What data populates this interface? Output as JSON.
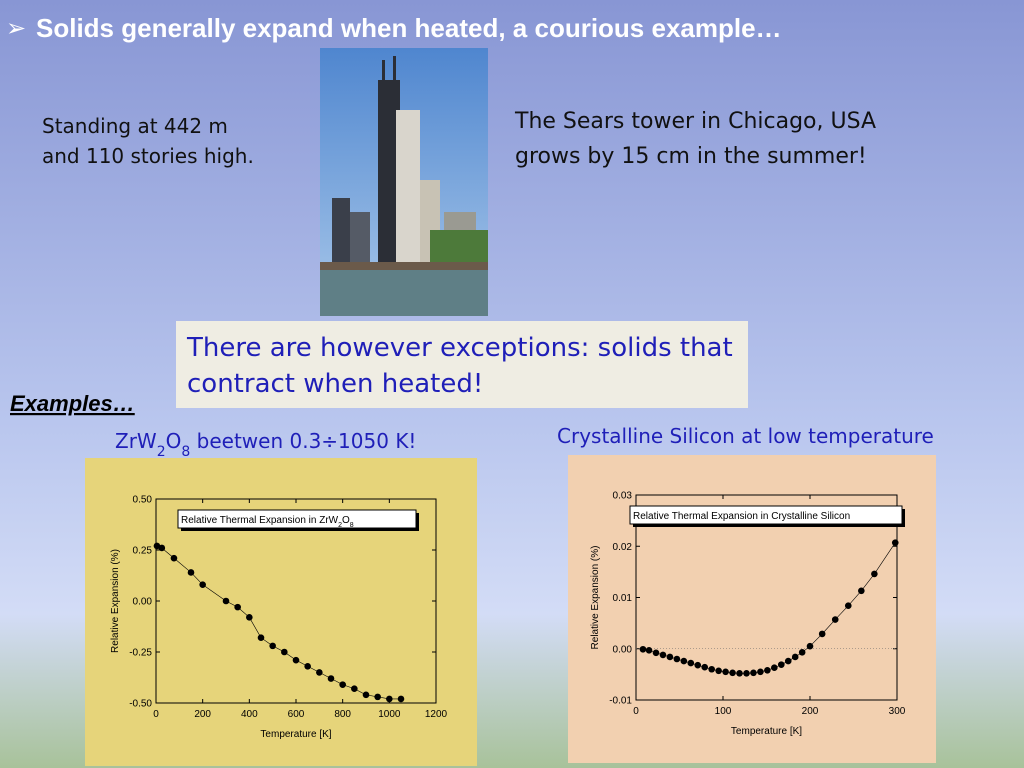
{
  "slide": {
    "title": "Solids generally expand when heated, a courious example…",
    "left_text": [
      "Standing at 442 m",
      "and 110 stories high."
    ],
    "right_text": [
      "The Sears tower in Chicago, USA",
      "grows by 15 cm in the summer!"
    ],
    "box_text": [
      "There are however exceptions: solids that",
      "contract when heated!"
    ],
    "examples": "Examples…"
  },
  "chart_data": [
    {
      "type": "scatter",
      "caption": [
        "ZrW",
        "2",
        "O",
        "8",
        " beetwen 0.3÷1050 K!"
      ],
      "title": [
        "Relative Thermal Expansion in ZrW",
        "2",
        "O",
        "8"
      ],
      "xlabel": "Temperature [K]",
      "ylabel": "Relative Expansion (%)",
      "x": [
        4,
        25,
        77,
        150,
        200,
        300,
        350,
        400,
        450,
        500,
        550,
        600,
        650,
        700,
        750,
        800,
        850,
        900,
        950,
        1000,
        1050
      ],
      "values": [
        0.27,
        0.26,
        0.21,
        0.14,
        0.08,
        0.0,
        -0.03,
        -0.08,
        -0.18,
        -0.22,
        -0.25,
        -0.29,
        -0.32,
        -0.35,
        -0.38,
        -0.41,
        -0.43,
        -0.46,
        -0.47,
        -0.48,
        -0.48
      ],
      "color": "#000000",
      "xlim": [
        0,
        1200
      ],
      "xticks": [
        0,
        200,
        400,
        600,
        800,
        1000,
        1200
      ],
      "ylim": [
        -0.5,
        0.5
      ],
      "yticks": [
        {
          "value": 0.5,
          "label": "0.50"
        },
        {
          "value": 0.25,
          "label": "0.25"
        },
        {
          "value": 0,
          "label": "0.00"
        },
        {
          "value": -0.25,
          "label": "-0.25"
        },
        {
          "value": -0.5,
          "label": "-0.50"
        }
      ],
      "zero_line": false
    },
    {
      "type": "scatter",
      "caption": [
        "Crystalline Silicon at low temperature"
      ],
      "title": [
        "Relative Thermal Expansion in Crystalline Silicon"
      ],
      "xlabel": "Temperature [K]",
      "ylabel": "Relative Expansion (%)",
      "x": [
        8,
        15,
        23,
        31,
        39,
        47,
        55,
        63,
        71,
        79,
        87,
        95,
        103,
        111,
        119,
        127,
        135,
        143,
        151,
        159,
        167,
        175,
        183,
        191,
        200,
        214,
        229,
        244,
        259,
        274,
        298
      ],
      "values": [
        -0.0001,
        -0.0003,
        -0.0008,
        -0.0012,
        -0.0016,
        -0.002,
        -0.0024,
        -0.0028,
        -0.0032,
        -0.0036,
        -0.004,
        -0.0043,
        -0.0045,
        -0.0047,
        -0.0048,
        -0.0048,
        -0.0047,
        -0.0045,
        -0.0042,
        -0.0037,
        -0.0031,
        -0.0024,
        -0.0016,
        -0.0007,
        0.0005,
        0.0029,
        0.0057,
        0.0084,
        0.0113,
        0.0146,
        0.0207
      ],
      "color": "#000000",
      "xlim": [
        0,
        300
      ],
      "xticks": [
        0,
        100,
        200,
        300
      ],
      "ylim": [
        -0.01,
        0.03
      ],
      "yticks": [
        {
          "value": 0.03,
          "label": "0.03"
        },
        {
          "value": 0.02,
          "label": "0.02"
        },
        {
          "value": 0.01,
          "label": "0.01"
        },
        {
          "value": 0,
          "label": "0.00"
        },
        {
          "value": -0.01,
          "label": "-0.01"
        }
      ],
      "zero_line": true
    }
  ]
}
